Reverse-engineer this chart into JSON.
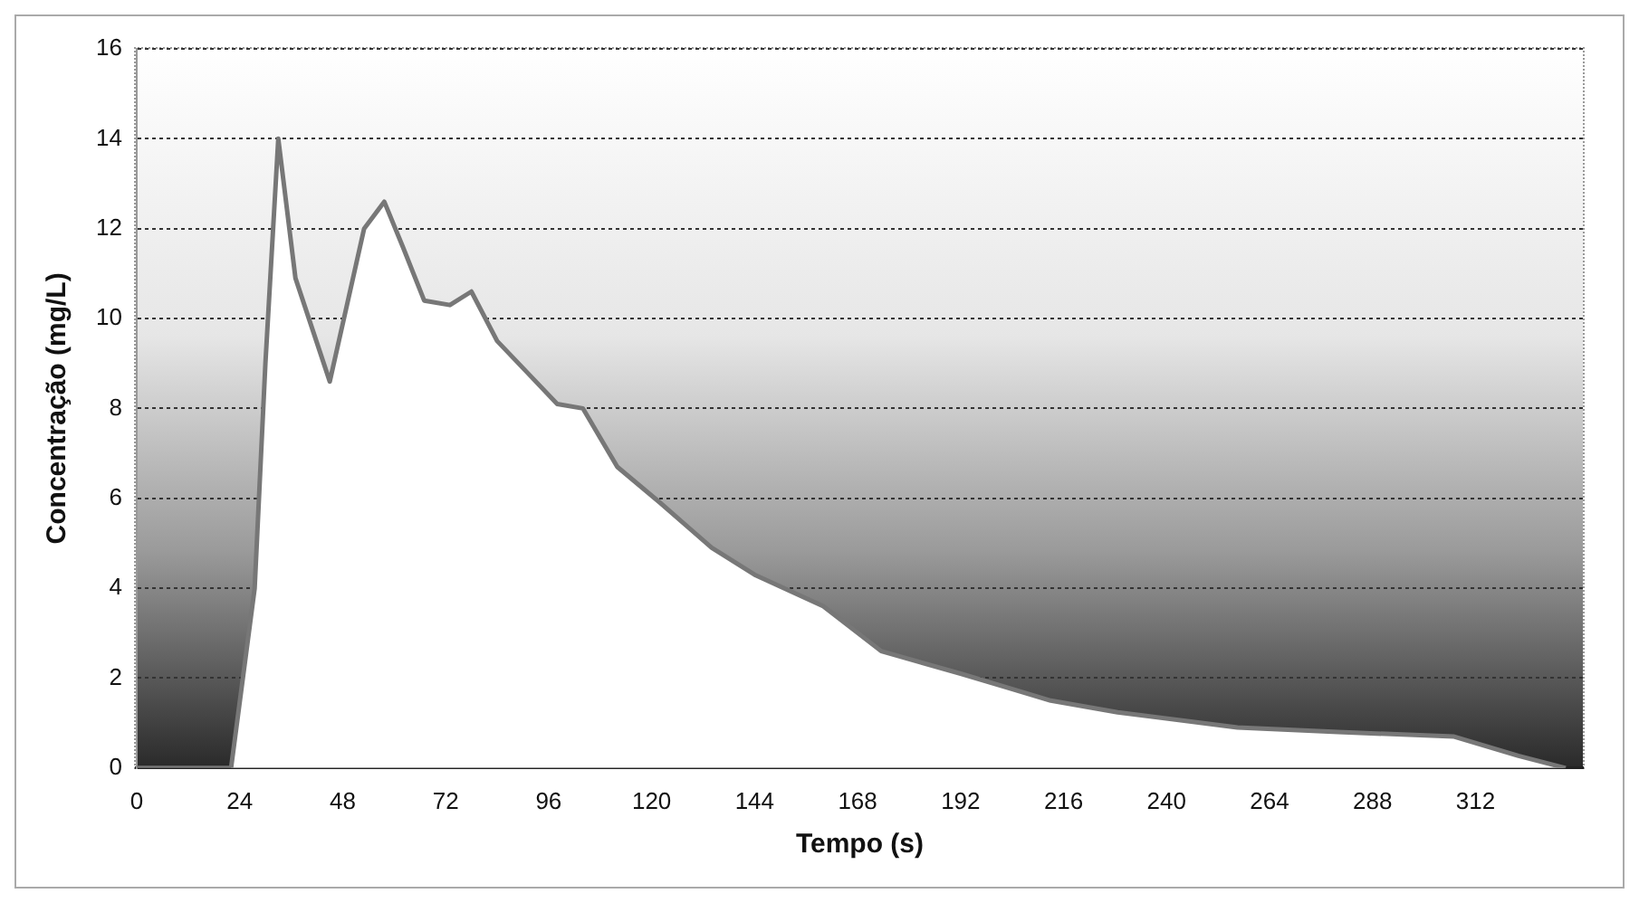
{
  "chart_data": {
    "type": "line",
    "xlabel": "Tempo (s)",
    "ylabel": "Concentração (mg/L)",
    "x": [
      0,
      18,
      22,
      27.5,
      30,
      33,
      37,
      45,
      53,
      57.7,
      62,
      67,
      73,
      78,
      84,
      92,
      98,
      104,
      112,
      122,
      134,
      144,
      160,
      173.5,
      192,
      213,
      228.6,
      256.5,
      280,
      307,
      322,
      333
    ],
    "series": [
      {
        "color": "#777777",
        "values": [
          0,
          0,
          0,
          4,
          9,
          14,
          10.9,
          8.6,
          12.0,
          12.6,
          11.6,
          10.4,
          10.3,
          10.6,
          9.5,
          8.7,
          8.1,
          8.0,
          6.7,
          5.9,
          4.9,
          4.3,
          3.6,
          2.6,
          2.1,
          1.5,
          1.24,
          0.9,
          0.8,
          0.7,
          0.27,
          0
        ]
      }
    ],
    "xlim": [
      0,
      337
    ],
    "xticks": [
      0,
      24,
      48,
      72,
      96,
      120,
      144,
      168,
      192,
      216,
      240,
      264,
      288,
      312
    ],
    "ylim": [
      0,
      16
    ],
    "yticks": [
      0,
      2,
      4,
      6,
      8,
      10,
      12,
      14,
      16
    ],
    "grid": "y",
    "legend": false,
    "marker": "none",
    "line_style": "solid"
  }
}
